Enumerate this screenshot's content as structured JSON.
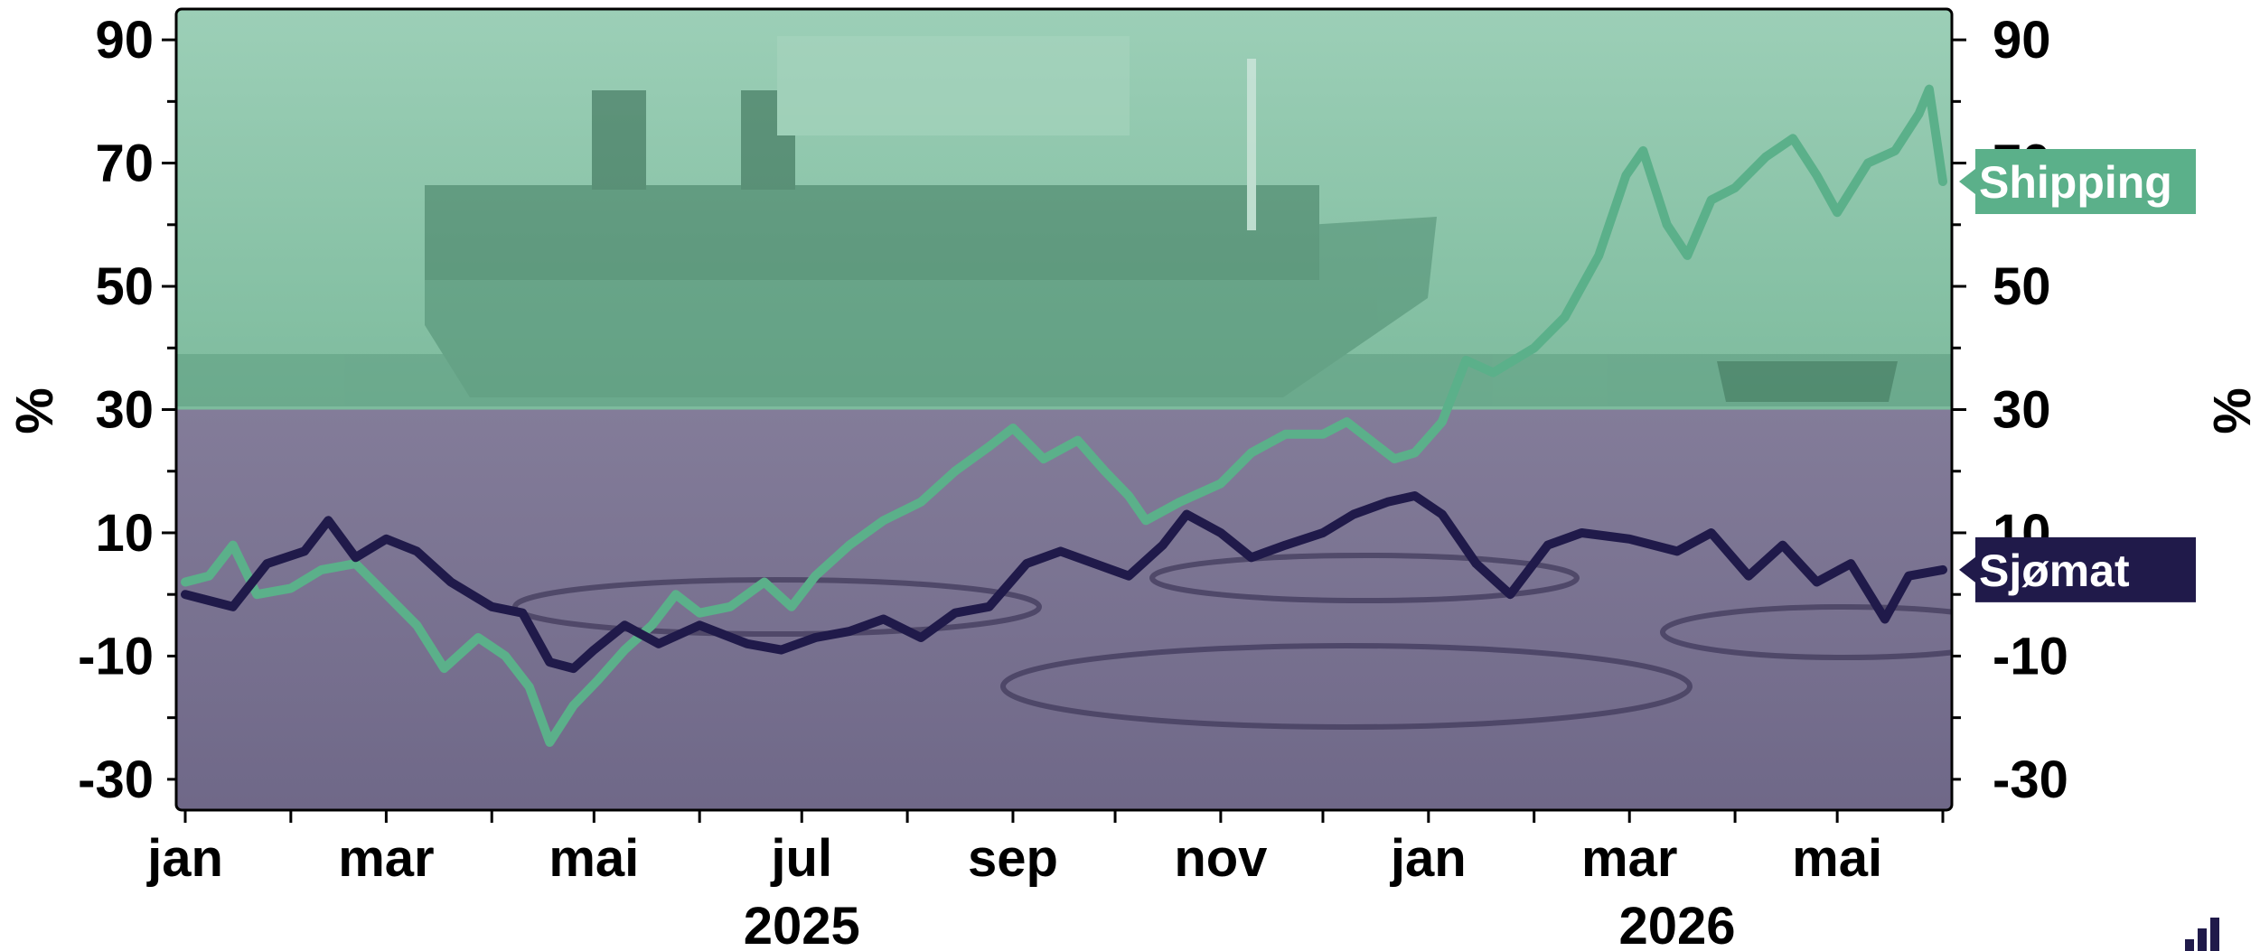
{
  "chart_data": {
    "type": "line",
    "ylabel_left": "%",
    "ylabel_right": "%",
    "ylim": [
      -35,
      95
    ],
    "y_ticks": [
      "90",
      "70",
      "50",
      "30",
      "10",
      "-10",
      "-30"
    ],
    "y_tick_values": [
      90,
      70,
      50,
      30,
      10,
      -10,
      -30
    ],
    "x_ticks": [
      "jan",
      "mar",
      "mai",
      "jul",
      "sep",
      "nov",
      "jan",
      "mar",
      "mai"
    ],
    "x_tick_values": [
      "2025-01-01",
      "2025-03-01",
      "2025-05-01",
      "2025-07-01",
      "2025-09-01",
      "2025-11-01",
      "2026-01-01",
      "2026-03-01",
      "2026-05-01"
    ],
    "x_year_labels": [
      {
        "label": "2025",
        "date": "2025-07-01"
      },
      {
        "label": "2026",
        "date": "2026-03-15"
      }
    ],
    "x_range": [
      "2025-01-01",
      "2026-06-01"
    ],
    "grid": false,
    "series": [
      {
        "name": "Shipping",
        "color": "#5bb08a",
        "points": [
          [
            "2025-01-01",
            2
          ],
          [
            "2025-01-08",
            3
          ],
          [
            "2025-01-15",
            8
          ],
          [
            "2025-01-22",
            0
          ],
          [
            "2025-02-01",
            1
          ],
          [
            "2025-02-10",
            4
          ],
          [
            "2025-02-20",
            5
          ],
          [
            "2025-03-01",
            0
          ],
          [
            "2025-03-10",
            -5
          ],
          [
            "2025-03-18",
            -12
          ],
          [
            "2025-03-28",
            -7
          ],
          [
            "2025-04-05",
            -10
          ],
          [
            "2025-04-12",
            -15
          ],
          [
            "2025-04-18",
            -24
          ],
          [
            "2025-04-25",
            -18
          ],
          [
            "2025-05-02",
            -14
          ],
          [
            "2025-05-10",
            -9
          ],
          [
            "2025-05-18",
            -5
          ],
          [
            "2025-05-25",
            0
          ],
          [
            "2025-06-01",
            -3
          ],
          [
            "2025-06-10",
            -2
          ],
          [
            "2025-06-20",
            2
          ],
          [
            "2025-06-28",
            -2
          ],
          [
            "2025-07-05",
            3
          ],
          [
            "2025-07-15",
            8
          ],
          [
            "2025-07-25",
            12
          ],
          [
            "2025-08-05",
            15
          ],
          [
            "2025-08-15",
            20
          ],
          [
            "2025-08-25",
            24
          ],
          [
            "2025-09-01",
            27
          ],
          [
            "2025-09-10",
            22
          ],
          [
            "2025-09-20",
            25
          ],
          [
            "2025-09-28",
            20
          ],
          [
            "2025-10-05",
            16
          ],
          [
            "2025-10-10",
            12
          ],
          [
            "2025-10-20",
            15
          ],
          [
            "2025-11-01",
            18
          ],
          [
            "2025-11-10",
            23
          ],
          [
            "2025-11-20",
            26
          ],
          [
            "2025-12-01",
            26
          ],
          [
            "2025-12-08",
            28
          ],
          [
            "2025-12-15",
            25
          ],
          [
            "2025-12-22",
            22
          ],
          [
            "2025-12-28",
            23
          ],
          [
            "2026-01-05",
            28
          ],
          [
            "2026-01-12",
            38
          ],
          [
            "2026-01-20",
            36
          ],
          [
            "2026-02-01",
            40
          ],
          [
            "2026-02-10",
            45
          ],
          [
            "2026-02-20",
            55
          ],
          [
            "2026-02-28",
            68
          ],
          [
            "2026-03-05",
            72
          ],
          [
            "2026-03-12",
            60
          ],
          [
            "2026-03-18",
            55
          ],
          [
            "2026-03-25",
            64
          ],
          [
            "2026-04-01",
            66
          ],
          [
            "2026-04-10",
            71
          ],
          [
            "2026-04-18",
            74
          ],
          [
            "2026-04-25",
            68
          ],
          [
            "2026-05-01",
            62
          ],
          [
            "2026-05-10",
            70
          ],
          [
            "2026-05-18",
            72
          ],
          [
            "2026-05-25",
            78
          ],
          [
            "2026-05-28",
            82
          ],
          [
            "2026-06-01",
            67
          ]
        ]
      },
      {
        "name": "Sjømat",
        "color": "#201a4a",
        "points": [
          [
            "2025-01-01",
            0
          ],
          [
            "2025-01-08",
            -1
          ],
          [
            "2025-01-15",
            -2
          ],
          [
            "2025-01-25",
            5
          ],
          [
            "2025-02-05",
            7
          ],
          [
            "2025-02-12",
            12
          ],
          [
            "2025-02-20",
            6
          ],
          [
            "2025-03-01",
            9
          ],
          [
            "2025-03-10",
            7
          ],
          [
            "2025-03-20",
            2
          ],
          [
            "2025-04-01",
            -2
          ],
          [
            "2025-04-10",
            -3
          ],
          [
            "2025-04-18",
            -11
          ],
          [
            "2025-04-25",
            -12
          ],
          [
            "2025-05-01",
            -9
          ],
          [
            "2025-05-10",
            -5
          ],
          [
            "2025-05-20",
            -8
          ],
          [
            "2025-06-01",
            -5
          ],
          [
            "2025-06-15",
            -8
          ],
          [
            "2025-06-25",
            -9
          ],
          [
            "2025-07-05",
            -7
          ],
          [
            "2025-07-15",
            -6
          ],
          [
            "2025-07-25",
            -4
          ],
          [
            "2025-08-05",
            -7
          ],
          [
            "2025-08-15",
            -3
          ],
          [
            "2025-08-25",
            -2
          ],
          [
            "2025-09-05",
            5
          ],
          [
            "2025-09-15",
            7
          ],
          [
            "2025-09-25",
            5
          ],
          [
            "2025-10-05",
            3
          ],
          [
            "2025-10-15",
            8
          ],
          [
            "2025-10-22",
            13
          ],
          [
            "2025-11-01",
            10
          ],
          [
            "2025-11-10",
            6
          ],
          [
            "2025-11-20",
            8
          ],
          [
            "2025-12-01",
            10
          ],
          [
            "2025-12-10",
            13
          ],
          [
            "2025-12-20",
            15
          ],
          [
            "2025-12-28",
            16
          ],
          [
            "2026-01-05",
            13
          ],
          [
            "2026-01-15",
            5
          ],
          [
            "2026-01-25",
            0
          ],
          [
            "2026-02-05",
            8
          ],
          [
            "2026-02-15",
            10
          ],
          [
            "2026-03-01",
            9
          ],
          [
            "2026-03-15",
            7
          ],
          [
            "2026-03-25",
            10
          ],
          [
            "2026-04-05",
            3
          ],
          [
            "2026-04-15",
            8
          ],
          [
            "2026-04-25",
            2
          ],
          [
            "2026-05-05",
            5
          ],
          [
            "2026-05-15",
            -4
          ],
          [
            "2026-05-22",
            3
          ],
          [
            "2026-06-01",
            4
          ]
        ]
      }
    ],
    "legend_placement": "right-edge labels",
    "background_split_value": 30,
    "background_top_color": "#86c3a6",
    "background_bottom_color": "#7f7897",
    "background_description_top": "container ship",
    "background_description_bottom": "fish farm pens"
  }
}
